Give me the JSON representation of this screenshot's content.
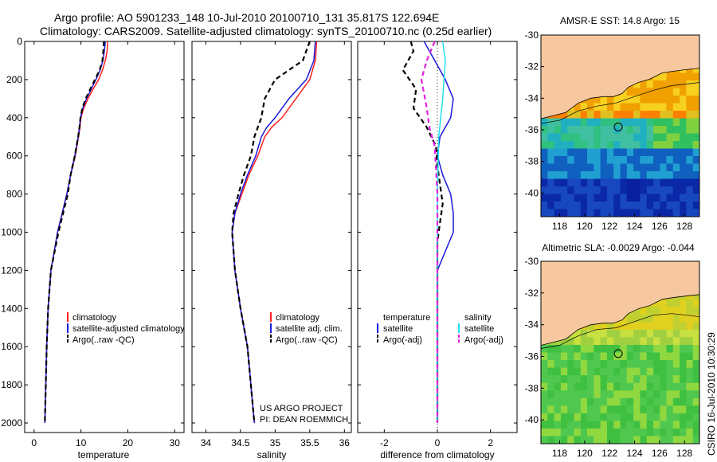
{
  "title": {
    "line1": "Argo profile: AO 5901233_148 10-Jul-2010 20100710_131 35.817S 122.694E",
    "line2": "Climatology: CARS2009. Satellite-adjusted climatology: synTS_20100710.nc (0.25d earlier)"
  },
  "credit": "CSIRO 16-Jul-2010 10:30:29",
  "colors": {
    "climatology": "#ff2020",
    "satellite": "#1a1adc",
    "argo": "#000000",
    "satellite_salinity": "#20e0f0",
    "argo_salinity": "#e020e0",
    "land": "#f7c8a0"
  },
  "chart_data": [
    {
      "type": "line",
      "id": "temperature-profile",
      "xlabel": "temperature",
      "xlim": [
        -2,
        32
      ],
      "ylim": [
        0,
        2050
      ],
      "yreverse": true,
      "xticks": [
        0,
        10,
        20,
        30
      ],
      "yticks": [
        0,
        200,
        400,
        600,
        800,
        1000,
        1200,
        1400,
        1600,
        1800,
        2000
      ],
      "legend": [
        "climatology",
        "satellite-adjusted climatology",
        "Argo(..raw -QC)"
      ],
      "series": [
        {
          "name": "climatology",
          "color": "#ff2020",
          "dash": "",
          "x": [
            15.7,
            15.6,
            15.2,
            14.6,
            13.8,
            12.6,
            11.5,
            10.6,
            10.0,
            9.8,
            9.5,
            8.8,
            7.8,
            7.0,
            6.0,
            5.0,
            4.3,
            3.6,
            3.0,
            2.7,
            2.5,
            2.4,
            2.3
          ],
          "y": [
            0,
            50,
            100,
            150,
            200,
            250,
            300,
            350,
            400,
            450,
            500,
            600,
            700,
            800,
            900,
            1000,
            1100,
            1200,
            1400,
            1600,
            1800,
            1900,
            2000
          ]
        },
        {
          "name": "satellite-adjusted climatology",
          "color": "#1a1adc",
          "dash": "",
          "x": [
            15.2,
            15.0,
            14.7,
            14.1,
            13.2,
            12.2,
            11.2,
            10.4,
            9.9,
            9.7,
            9.4,
            8.7,
            7.8,
            7.0,
            6.0,
            5.0,
            4.3,
            3.6,
            3.0,
            2.7,
            2.5,
            2.4,
            2.3
          ],
          "y": [
            0,
            50,
            100,
            150,
            200,
            250,
            300,
            350,
            400,
            450,
            500,
            600,
            700,
            800,
            900,
            1000,
            1100,
            1200,
            1400,
            1600,
            1800,
            1900,
            2000
          ]
        },
        {
          "name": "Argo(..raw -QC)",
          "color": "#000000",
          "dash": "6,4",
          "x": [
            14.9,
            14.8,
            14.6,
            14.0,
            13.0,
            12.0,
            11.0,
            10.3,
            9.9,
            9.7,
            9.4,
            8.7,
            7.8,
            7.2,
            6.2,
            5.2,
            4.4,
            3.6,
            3.0,
            2.7,
            2.5,
            2.4,
            2.3
          ],
          "y": [
            0,
            50,
            100,
            150,
            200,
            250,
            300,
            350,
            400,
            450,
            500,
            600,
            700,
            800,
            900,
            1000,
            1100,
            1200,
            1400,
            1600,
            1800,
            1900,
            2000
          ]
        }
      ]
    },
    {
      "type": "line",
      "id": "salinity-profile",
      "xlabel": "salinity",
      "xlim": [
        33.8,
        36.1
      ],
      "ylim": [
        0,
        2050
      ],
      "yreverse": true,
      "xticks": [
        34,
        34.5,
        35,
        35.5,
        36
      ],
      "legend": [
        "climatology",
        "satellite adj. clim.",
        "Argo(..raw -QC)"
      ],
      "annotation": [
        "US ARGO PROJECT",
        "PI: DEAN ROEMMICH"
      ],
      "series": [
        {
          "name": "climatology",
          "color": "#ff2020",
          "dash": "",
          "x": [
            35.6,
            35.58,
            35.5,
            35.3,
            35.1,
            34.95,
            34.85,
            34.75,
            34.62,
            34.52,
            34.42,
            34.38,
            34.42,
            34.5,
            34.6,
            34.65,
            34.7
          ],
          "y": [
            0,
            100,
            200,
            300,
            400,
            450,
            500,
            600,
            700,
            800,
            900,
            1000,
            1200,
            1400,
            1600,
            1800,
            2000
          ]
        },
        {
          "name": "satellite adj. clim.",
          "color": "#1a1adc",
          "dash": "",
          "x": [
            35.58,
            35.56,
            35.45,
            35.2,
            35.0,
            34.88,
            34.8,
            34.72,
            34.6,
            34.5,
            34.42,
            34.38,
            34.42,
            34.5,
            34.6,
            34.65,
            34.7
          ],
          "y": [
            0,
            100,
            200,
            300,
            400,
            450,
            500,
            600,
            700,
            800,
            900,
            1000,
            1200,
            1400,
            1600,
            1800,
            2000
          ]
        },
        {
          "name": "Argo(..raw -QC)",
          "color": "#000000",
          "dash": "6,4",
          "x": [
            35.5,
            35.4,
            35.0,
            34.85,
            34.8,
            34.75,
            34.7,
            34.65,
            34.55,
            34.47,
            34.4,
            34.38,
            34.42,
            34.5,
            34.6,
            34.65,
            34.7
          ],
          "y": [
            0,
            100,
            200,
            300,
            400,
            450,
            500,
            600,
            700,
            800,
            900,
            1000,
            1200,
            1400,
            1600,
            1800,
            2000
          ]
        }
      ]
    },
    {
      "type": "line",
      "id": "difference-profile",
      "xlabel": "difference from climatology",
      "xlim": [
        -3.0,
        3.0
      ],
      "ylim": [
        0,
        2050
      ],
      "yreverse": true,
      "xticks": [
        -2,
        0,
        2
      ],
      "legend_left": {
        "title": "temperature",
        "items": [
          "satellite",
          "Argo(-adj)"
        ]
      },
      "legend_right": {
        "title": "salinity",
        "items": [
          "satellite",
          "Argo(-adj)"
        ]
      },
      "series": [
        {
          "name": "temperature satellite",
          "color": "#1a1adc",
          "dash": "",
          "x": [
            -0.5,
            -0.3,
            -0.1,
            0.3,
            0.6,
            0.5,
            0.1,
            0.0,
            0.2,
            0.5,
            0.6,
            0.6,
            0.3,
            0.0,
            0.0,
            0.0
          ],
          "y": [
            0,
            50,
            100,
            200,
            300,
            400,
            500,
            600,
            700,
            800,
            900,
            1000,
            1100,
            1200,
            1600,
            2000
          ]
        },
        {
          "name": "temperature Argo(-adj)",
          "color": "#000000",
          "dash": "6,4",
          "x": [
            -1.0,
            -0.9,
            -1.3,
            -0.8,
            -0.9,
            -0.4,
            -0.05,
            0.0,
            0.1,
            0.2,
            0.1,
            0.0,
            0.0,
            0.0
          ],
          "y": [
            0,
            50,
            150,
            250,
            350,
            450,
            550,
            650,
            750,
            850,
            950,
            1050,
            1600,
            2000
          ]
        },
        {
          "name": "salinity satellite",
          "color": "#20e0f0",
          "dash": "",
          "x": [
            0.2,
            0.3,
            0.2,
            0.05,
            0.0,
            0.0,
            0.0,
            0.0
          ],
          "y": [
            0,
            100,
            300,
            500,
            800,
            1200,
            1600,
            2000
          ]
        },
        {
          "name": "salinity Argo(-adj)",
          "color": "#e020e0",
          "dash": "6,4",
          "x": [
            -0.1,
            -0.4,
            -0.6,
            -0.4,
            -0.3,
            -0.1,
            0.0,
            0.0
          ],
          "y": [
            0,
            100,
            200,
            350,
            450,
            550,
            800,
            2000
          ]
        }
      ]
    },
    {
      "type": "heatmap",
      "id": "sst-map",
      "title": "AMSR-E SST: 14.8  Argo: 15",
      "xlim": [
        116.5,
        129.2
      ],
      "ylim": [
        -41.5,
        -30
      ],
      "xticks": [
        118,
        120,
        122,
        124,
        126,
        128
      ],
      "yticks": [
        -30,
        -32,
        -34,
        -36,
        -38,
        -40
      ],
      "marker": {
        "lon": 122.694,
        "lat": -35.817
      }
    },
    {
      "type": "heatmap",
      "id": "sla-map",
      "title": "Altimetric SLA: -0.0029  Argo: -0.044",
      "xlim": [
        116.5,
        129.2
      ],
      "ylim": [
        -41.5,
        -30
      ],
      "xticks": [
        118,
        120,
        122,
        124,
        126,
        128
      ],
      "yticks": [
        -30,
        -32,
        -34,
        -36,
        -38,
        -40
      ],
      "marker": {
        "lon": 122.694,
        "lat": -35.817
      }
    }
  ]
}
